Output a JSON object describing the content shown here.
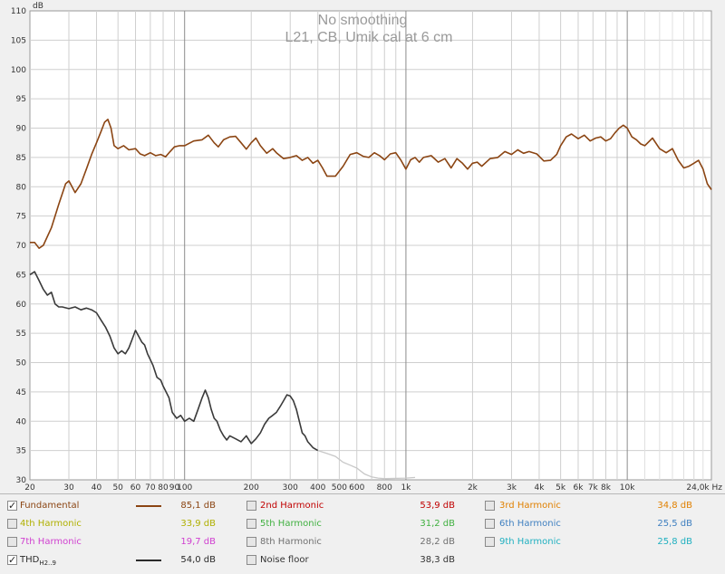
{
  "chart_data": {
    "type": "line",
    "title": "No smoothing",
    "subtitle": "L21, CB, Umik cal at 6 cm",
    "ylabel": "dB",
    "xlabel": "Hz",
    "x_scale": "log",
    "xlim": [
      20,
      24000
    ],
    "ylim": [
      30,
      110
    ],
    "grid": true,
    "x_tick_labels": [
      {
        "f": 20,
        "label": "20"
      },
      {
        "f": 30,
        "label": "30"
      },
      {
        "f": 40,
        "label": "40"
      },
      {
        "f": 50,
        "label": "50"
      },
      {
        "f": 60,
        "label": "60"
      },
      {
        "f": 70,
        "label": "70"
      },
      {
        "f": 80,
        "label": "80"
      },
      {
        "f": 90,
        "label": "90"
      },
      {
        "f": 100,
        "label": "100"
      },
      {
        "f": 200,
        "label": "200"
      },
      {
        "f": 300,
        "label": "300"
      },
      {
        "f": 400,
        "label": "400"
      },
      {
        "f": 500,
        "label": "500"
      },
      {
        "f": 600,
        "label": "600"
      },
      {
        "f": 800,
        "label": "800"
      },
      {
        "f": 1000,
        "label": "1k"
      },
      {
        "f": 2000,
        "label": "2k"
      },
      {
        "f": 3000,
        "label": "3k"
      },
      {
        "f": 4000,
        "label": "4k"
      },
      {
        "f": 5000,
        "label": "5k"
      },
      {
        "f": 6000,
        "label": "6k"
      },
      {
        "f": 7000,
        "label": "7k"
      },
      {
        "f": 8000,
        "label": "8k"
      },
      {
        "f": 10000,
        "label": "10k"
      },
      {
        "f": 24000,
        "label": "24,0k Hz"
      }
    ],
    "y_ticks": [
      30,
      35,
      40,
      45,
      50,
      55,
      60,
      65,
      70,
      75,
      80,
      85,
      90,
      95,
      100,
      105,
      110
    ],
    "series": [
      {
        "name": "Fundamental",
        "color": "#8b4513",
        "points": [
          [
            20,
            70.5
          ],
          [
            21,
            70.5
          ],
          [
            22,
            69.5
          ],
          [
            23,
            70
          ],
          [
            25,
            73
          ],
          [
            27,
            77
          ],
          [
            29,
            80.5
          ],
          [
            30,
            81
          ],
          [
            31,
            80
          ],
          [
            32,
            79
          ],
          [
            34,
            80.5
          ],
          [
            36,
            83
          ],
          [
            38,
            85.5
          ],
          [
            40,
            87.5
          ],
          [
            42,
            89.5
          ],
          [
            43.5,
            91
          ],
          [
            45,
            91.5
          ],
          [
            46.5,
            90
          ],
          [
            48,
            87
          ],
          [
            50,
            86.5
          ],
          [
            53,
            87
          ],
          [
            56,
            86.3
          ],
          [
            60,
            86.5
          ],
          [
            63,
            85.6
          ],
          [
            66,
            85.3
          ],
          [
            70,
            85.8
          ],
          [
            74,
            85.3
          ],
          [
            78,
            85.5
          ],
          [
            82,
            85.1
          ],
          [
            86,
            86
          ],
          [
            90,
            86.8
          ],
          [
            95,
            87
          ],
          [
            100,
            87
          ],
          [
            110,
            87.8
          ],
          [
            120,
            88
          ],
          [
            128,
            88.8
          ],
          [
            136,
            87.5
          ],
          [
            142,
            86.8
          ],
          [
            150,
            88
          ],
          [
            160,
            88.5
          ],
          [
            170,
            88.6
          ],
          [
            180,
            87.5
          ],
          [
            190,
            86.4
          ],
          [
            200,
            87.5
          ],
          [
            210,
            88.3
          ],
          [
            220,
            87
          ],
          [
            235,
            85.7
          ],
          [
            250,
            86.5
          ],
          [
            260,
            85.8
          ],
          [
            280,
            84.8
          ],
          [
            300,
            85
          ],
          [
            320,
            85.3
          ],
          [
            340,
            84.5
          ],
          [
            360,
            85
          ],
          [
            380,
            84
          ],
          [
            400,
            84.5
          ],
          [
            420,
            83.2
          ],
          [
            440,
            81.8
          ],
          [
            480,
            81.8
          ],
          [
            520,
            83.5
          ],
          [
            560,
            85.5
          ],
          [
            600,
            85.8
          ],
          [
            640,
            85.2
          ],
          [
            680,
            85
          ],
          [
            720,
            85.8
          ],
          [
            760,
            85.3
          ],
          [
            800,
            84.6
          ],
          [
            850,
            85.6
          ],
          [
            900,
            85.8
          ],
          [
            950,
            84.5
          ],
          [
            1000,
            83
          ],
          [
            1050,
            84.6
          ],
          [
            1100,
            85
          ],
          [
            1150,
            84.2
          ],
          [
            1200,
            85
          ],
          [
            1300,
            85.3
          ],
          [
            1400,
            84.2
          ],
          [
            1500,
            84.8
          ],
          [
            1600,
            83.2
          ],
          [
            1700,
            84.8
          ],
          [
            1800,
            84
          ],
          [
            1900,
            83
          ],
          [
            2000,
            84
          ],
          [
            2100,
            84.2
          ],
          [
            2200,
            83.5
          ],
          [
            2400,
            84.8
          ],
          [
            2600,
            85
          ],
          [
            2800,
            86
          ],
          [
            3000,
            85.5
          ],
          [
            3200,
            86.3
          ],
          [
            3400,
            85.7
          ],
          [
            3600,
            86
          ],
          [
            3900,
            85.6
          ],
          [
            4200,
            84.4
          ],
          [
            4500,
            84.5
          ],
          [
            4800,
            85.5
          ],
          [
            5000,
            87
          ],
          [
            5300,
            88.5
          ],
          [
            5600,
            89
          ],
          [
            6000,
            88.2
          ],
          [
            6400,
            88.8
          ],
          [
            6800,
            87.8
          ],
          [
            7200,
            88.3
          ],
          [
            7600,
            88.5
          ],
          [
            8000,
            87.8
          ],
          [
            8400,
            88.2
          ],
          [
            8800,
            89.2
          ],
          [
            9200,
            90
          ],
          [
            9600,
            90.5
          ],
          [
            10000,
            90
          ],
          [
            10500,
            88.5
          ],
          [
            11000,
            88
          ],
          [
            11500,
            87.3
          ],
          [
            12000,
            87
          ],
          [
            13000,
            88.3
          ],
          [
            14000,
            86.5
          ],
          [
            15000,
            85.8
          ],
          [
            16000,
            86.5
          ],
          [
            17000,
            84.5
          ],
          [
            18000,
            83.2
          ],
          [
            19000,
            83.5
          ],
          [
            20000,
            84
          ],
          [
            21000,
            84.5
          ],
          [
            22000,
            83
          ],
          [
            23000,
            80.5
          ],
          [
            24000,
            79.5
          ]
        ]
      },
      {
        "name": "THD",
        "color": "#3a3a3a",
        "points": [
          [
            20,
            65
          ],
          [
            21,
            65.5
          ],
          [
            22,
            64
          ],
          [
            23,
            62.5
          ],
          [
            24,
            61.5
          ],
          [
            25,
            62
          ],
          [
            26,
            60
          ],
          [
            27,
            59.5
          ],
          [
            28,
            59.5
          ],
          [
            30,
            59.2
          ],
          [
            32,
            59.5
          ],
          [
            34,
            59
          ],
          [
            36,
            59.3
          ],
          [
            38,
            59
          ],
          [
            40,
            58.5
          ],
          [
            42,
            57.2
          ],
          [
            44,
            56
          ],
          [
            46,
            54.5
          ],
          [
            48,
            52.5
          ],
          [
            50,
            51.5
          ],
          [
            52,
            52
          ],
          [
            54,
            51.5
          ],
          [
            56,
            52.5
          ],
          [
            58,
            54
          ],
          [
            60,
            55.5
          ],
          [
            62,
            54.5
          ],
          [
            64,
            53.5
          ],
          [
            66,
            53
          ],
          [
            68,
            51.5
          ],
          [
            70,
            50.5
          ],
          [
            72,
            49.5
          ],
          [
            75,
            47.5
          ],
          [
            78,
            47
          ],
          [
            80,
            46
          ],
          [
            85,
            44
          ],
          [
            88,
            41.5
          ],
          [
            92,
            40.5
          ],
          [
            96,
            41
          ],
          [
            100,
            40
          ],
          [
            105,
            40.5
          ],
          [
            110,
            40
          ],
          [
            115,
            42
          ],
          [
            120,
            44
          ],
          [
            124,
            45.3
          ],
          [
            128,
            44
          ],
          [
            132,
            42
          ],
          [
            136,
            40.5
          ],
          [
            140,
            40
          ],
          [
            145,
            38.5
          ],
          [
            150,
            37.5
          ],
          [
            155,
            36.8
          ],
          [
            160,
            37.5
          ],
          [
            170,
            37
          ],
          [
            180,
            36.5
          ],
          [
            190,
            37.5
          ],
          [
            200,
            36.2
          ],
          [
            210,
            37
          ],
          [
            220,
            38
          ],
          [
            230,
            39.5
          ],
          [
            240,
            40.5
          ],
          [
            250,
            41
          ],
          [
            260,
            41.5
          ],
          [
            270,
            42.5
          ],
          [
            280,
            43.5
          ],
          [
            290,
            44.5
          ],
          [
            300,
            44.3
          ],
          [
            310,
            43.5
          ],
          [
            320,
            42
          ],
          [
            330,
            40
          ],
          [
            340,
            38
          ],
          [
            350,
            37.5
          ],
          [
            360,
            36.5
          ],
          [
            380,
            35.5
          ],
          [
            400,
            35
          ]
        ]
      }
    ],
    "thd_faint_tail": [
      [
        400,
        35
      ],
      [
        440,
        34.5
      ],
      [
        480,
        34
      ],
      [
        520,
        33
      ],
      [
        560,
        32.5
      ],
      [
        600,
        32
      ],
      [
        650,
        31
      ],
      [
        700,
        30.5
      ],
      [
        750,
        30.3
      ],
      [
        800,
        30.2
      ],
      [
        1000,
        30.3
      ],
      [
        1100,
        30.4
      ]
    ]
  },
  "legend": {
    "rows": [
      [
        {
          "name": "Fundamental",
          "checked": true,
          "color": "#8b4513",
          "value": "85,1 dB",
          "swatch": true
        },
        {
          "name": "2nd Harmonic",
          "checked": false,
          "color": "#c00000",
          "value": "53,9 dB"
        },
        {
          "name": "3rd Harmonic",
          "checked": false,
          "color": "#e08000",
          "value": "34,8 dB"
        }
      ],
      [
        {
          "name": "4th Harmonic",
          "checked": false,
          "color": "#b0b000",
          "value": "33,9 dB"
        },
        {
          "name": "5th Harmonic",
          "checked": false,
          "color": "#40b040",
          "value": "31,2 dB"
        },
        {
          "name": "6th Harmonic",
          "checked": false,
          "color": "#4080c0",
          "value": "25,5 dB"
        }
      ],
      [
        {
          "name": "7th Harmonic",
          "checked": false,
          "color": "#d040d0",
          "value": "19,7 dB"
        },
        {
          "name": "8th Harmonic",
          "checked": false,
          "color": "#707070",
          "value": "28,2 dB"
        },
        {
          "name": "9th Harmonic",
          "checked": false,
          "color": "#20b0c0",
          "value": "25,8 dB"
        }
      ],
      [
        {
          "name": "THD",
          "sub": "H2..9",
          "checked": true,
          "color": "#2a2a2a",
          "value": "54,0 dB",
          "swatch": true
        },
        {
          "name": "Noise floor",
          "checked": false,
          "color": "#333333",
          "value": "38,3 dB"
        }
      ]
    ]
  }
}
